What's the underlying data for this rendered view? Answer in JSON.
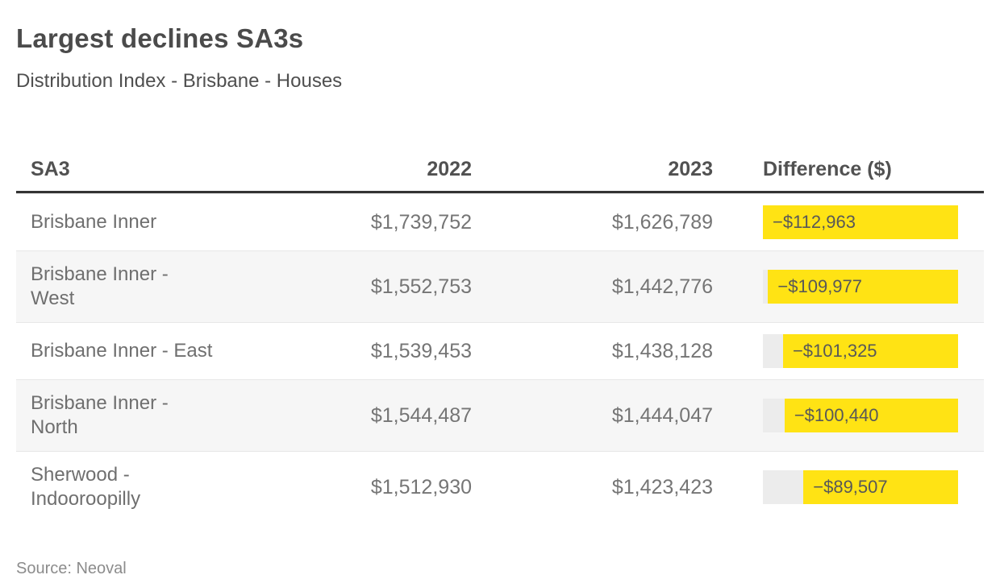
{
  "title": "Largest declines SA3s",
  "subtitle": "Distribution Index - Brisbane - Houses",
  "source": "Source: Neoval",
  "colors": {
    "highlight_bar": "#ffe314",
    "bar_track": "#ececec",
    "row_stripe": "#f6f6f6",
    "header_rule": "#333333",
    "title_text": "#4b4b4b",
    "body_text": "#6f6f6f"
  },
  "table": {
    "columns": [
      "SA3",
      "2022",
      "2023",
      "Difference ($)"
    ],
    "rows": [
      {
        "sa3": "Brisbane Inner",
        "y2022": "$1,739,752",
        "y2023": "$1,626,789",
        "difference_label": "−$112,963",
        "difference_value": -112963
      },
      {
        "sa3": "Brisbane Inner -\nWest",
        "y2022": "$1,552,753",
        "y2023": "$1,442,776",
        "difference_label": "−$109,977",
        "difference_value": -109977
      },
      {
        "sa3": "Brisbane Inner - East",
        "y2022": "$1,539,453",
        "y2023": "$1,438,128",
        "difference_label": "−$101,325",
        "difference_value": -101325
      },
      {
        "sa3": "Brisbane Inner -\nNorth",
        "y2022": "$1,544,487",
        "y2023": "$1,444,047",
        "difference_label": "−$100,440",
        "difference_value": -100440
      },
      {
        "sa3": "Sherwood -\nIndooroopilly",
        "y2022": "$1,512,930",
        "y2023": "$1,423,423",
        "difference_label": "−$89,507",
        "difference_value": -89507
      }
    ]
  },
  "chart_data": {
    "type": "table",
    "title": "Largest declines SA3s",
    "subtitle": "Distribution Index - Brisbane - Houses",
    "source": "Source: Neoval",
    "columns": [
      "SA3",
      "2022",
      "2023",
      "Difference ($)"
    ],
    "rows": [
      {
        "sa3": "Brisbane Inner",
        "2022": 1739752,
        "2023": 1626789,
        "difference": -112963
      },
      {
        "sa3": "Brisbane Inner - West",
        "2022": 1552753,
        "2023": 1442776,
        "difference": -109977
      },
      {
        "sa3": "Brisbane Inner - East",
        "2022": 1539453,
        "2023": 1438128,
        "difference": -101325
      },
      {
        "sa3": "Brisbane Inner - North",
        "2022": 1544487,
        "2023": 1444047,
        "difference": -100440
      },
      {
        "sa3": "Sherwood - Indooroopilly",
        "2022": 1512930,
        "2023": 1423423,
        "difference": -89507
      }
    ],
    "bar_encoding": "Difference column rendered as right-anchored yellow data bars over a gray track, bar length proportional to |difference|, max = 112963"
  }
}
